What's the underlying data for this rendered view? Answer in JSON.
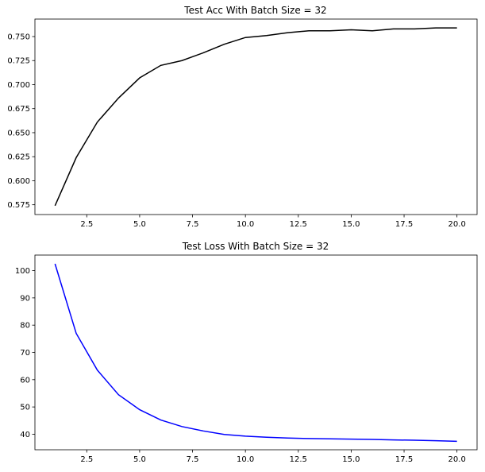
{
  "chart_data": [
    {
      "type": "line",
      "title": "Test Acc With Batch Size = 32",
      "xlabel": "",
      "ylabel": "",
      "x": [
        1,
        2,
        3,
        4,
        5,
        6,
        7,
        8,
        9,
        10,
        11,
        12,
        13,
        14,
        15,
        16,
        17,
        18,
        19,
        20
      ],
      "series": [
        {
          "color": "#000000",
          "values": [
            0.574,
            0.624,
            0.661,
            0.686,
            0.707,
            0.72,
            0.725,
            0.733,
            0.742,
            0.749,
            0.751,
            0.754,
            0.756,
            0.756,
            0.757,
            0.756,
            0.758,
            0.758,
            0.759,
            0.759
          ]
        }
      ],
      "xlim": [
        0.05,
        20.95
      ],
      "ylim": [
        0.5648,
        0.7682
      ],
      "xticks": [
        2.5,
        5.0,
        7.5,
        10.0,
        12.5,
        15.0,
        17.5,
        20.0
      ],
      "xtick_labels": [
        "2.5",
        "5.0",
        "7.5",
        "10.0",
        "12.5",
        "15.0",
        "17.5",
        "20.0"
      ],
      "yticks": [
        0.575,
        0.6,
        0.625,
        0.65,
        0.675,
        0.7,
        0.725,
        0.75
      ],
      "ytick_labels": [
        "0.575",
        "0.600",
        "0.625",
        "0.650",
        "0.675",
        "0.700",
        "0.725",
        "0.750"
      ],
      "grid": false
    },
    {
      "type": "line",
      "title": "Test Loss With Batch Size = 32",
      "xlabel": "",
      "ylabel": "",
      "x": [
        1,
        2,
        3,
        4,
        5,
        6,
        7,
        8,
        9,
        10,
        11,
        12,
        13,
        14,
        15,
        16,
        17,
        18,
        19,
        20
      ],
      "series": [
        {
          "color": "#0000ff",
          "values": [
            102.5,
            77.0,
            63.5,
            54.5,
            49.0,
            45.2,
            42.8,
            41.2,
            39.9,
            39.3,
            38.9,
            38.6,
            38.4,
            38.3,
            38.2,
            38.1,
            37.9,
            37.8,
            37.6,
            37.4
          ]
        }
      ],
      "xlim": [
        0.05,
        20.95
      ],
      "ylim": [
        34.3,
        105.7
      ],
      "xticks": [
        2.5,
        5.0,
        7.5,
        10.0,
        12.5,
        15.0,
        17.5,
        20.0
      ],
      "xtick_labels": [
        "2.5",
        "5.0",
        "7.5",
        "10.0",
        "12.5",
        "15.0",
        "17.5",
        "20.0"
      ],
      "yticks": [
        40,
        50,
        60,
        70,
        80,
        90,
        100
      ],
      "ytick_labels": [
        "40",
        "50",
        "60",
        "70",
        "80",
        "90",
        "100"
      ],
      "grid": false
    }
  ]
}
